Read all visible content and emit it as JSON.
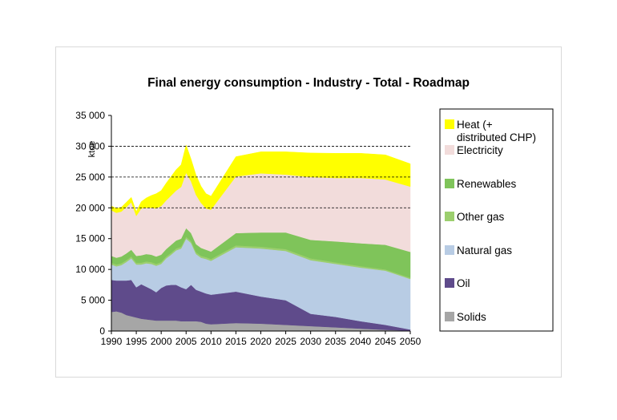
{
  "chart_data": {
    "type": "area",
    "title": "Final energy consumption - Industry - Total - Roadmap",
    "ylabel": "ktoe",
    "xlabel": "",
    "ylim": [
      0,
      35000
    ],
    "yticks": [
      0,
      5000,
      10000,
      15000,
      20000,
      25000,
      30000,
      35000
    ],
    "ytick_labels": [
      "0",
      "5 000",
      "10 000",
      "15 000",
      "20 000",
      "25 000",
      "30 000",
      "35 000"
    ],
    "xlim": [
      1990,
      2050
    ],
    "xticks": [
      1990,
      1995,
      2000,
      2005,
      2010,
      2015,
      2020,
      2025,
      2030,
      2035,
      2040,
      2045,
      2050
    ],
    "xtick_labels": [
      "1990",
      "1995",
      "2000",
      "2005",
      "2010",
      "2015",
      "2020",
      "2025",
      "2030",
      "2035",
      "2040",
      "2045",
      "2050"
    ],
    "grid": "dashed lines at 20 000, 25 000 and 30 000",
    "legend_position": "right",
    "stacked": true,
    "x": [
      1990,
      1991,
      1992,
      1993,
      1994,
      1995,
      1996,
      1997,
      1998,
      1999,
      2000,
      2001,
      2002,
      2003,
      2004,
      2005,
      2006,
      2007,
      2008,
      2009,
      2010,
      2015,
      2020,
      2025,
      2030,
      2035,
      2040,
      2045,
      2050
    ],
    "series": [
      {
        "name": "Solids",
        "color": "#a6a6a6",
        "values": [
          3100,
          3200,
          3000,
          2600,
          2400,
          2200,
          2000,
          1900,
          1800,
          1700,
          1700,
          1700,
          1700,
          1700,
          1600,
          1600,
          1600,
          1600,
          1500,
          1200,
          1100,
          1300,
          1200,
          1000,
          800,
          600,
          400,
          200,
          50
        ]
      },
      {
        "name": "Oil",
        "color": "#5f4b8b",
        "values": [
          5200,
          5000,
          5200,
          5600,
          5900,
          4900,
          5600,
          5300,
          5000,
          4600,
          5300,
          5700,
          5800,
          5800,
          5500,
          5200,
          5900,
          5100,
          4900,
          4900,
          4800,
          5100,
          4400,
          4000,
          2000,
          1700,
          1200,
          800,
          200
        ]
      },
      {
        "name": "Natural gas",
        "color": "#b8cce4",
        "values": [
          2500,
          2300,
          2500,
          3000,
          3500,
          3700,
          3200,
          3800,
          4100,
          4300,
          3900,
          4400,
          4900,
          5600,
          6300,
          8200,
          6800,
          5800,
          5500,
          5600,
          5500,
          7200,
          7800,
          8000,
          8700,
          8600,
          8700,
          8800,
          8200
        ]
      },
      {
        "name": "Other gas",
        "color": "#9ccf6e",
        "values": [
          300,
          300,
          300,
          300,
          300,
          300,
          300,
          300,
          300,
          300,
          300,
          300,
          300,
          300,
          300,
          300,
          300,
          300,
          300,
          300,
          300,
          300,
          300,
          300,
          300,
          250,
          250,
          200,
          200
        ]
      },
      {
        "name": "Renewables",
        "color": "#7fc45a",
        "values": [
          1100,
          1100,
          1100,
          1100,
          1100,
          1100,
          1200,
          1200,
          1200,
          1200,
          1200,
          1200,
          1300,
          1300,
          1300,
          1400,
          1300,
          1300,
          1300,
          1200,
          1200,
          2000,
          2300,
          2700,
          3000,
          3400,
          3700,
          4000,
          4200
        ]
      },
      {
        "name": "Electricity",
        "color": "#f2dcdb",
        "values": [
          7400,
          7300,
          7300,
          7500,
          7700,
          6500,
          7600,
          7500,
          7600,
          7800,
          7900,
          7900,
          8000,
          8100,
          8400,
          9000,
          8400,
          8000,
          7300,
          6700,
          6800,
          9200,
          9600,
          9400,
          10200,
          10300,
          10600,
          10600,
          10600
        ]
      },
      {
        "name": "Heat (+ distributed CHP)",
        "color": "#ffff00",
        "values": [
          700,
          700,
          700,
          800,
          800,
          700,
          1100,
          1600,
          2000,
          2400,
          2500,
          2800,
          3100,
          3400,
          3600,
          4500,
          3600,
          3200,
          2700,
          2400,
          2200,
          3200,
          3500,
          3700,
          3900,
          4000,
          4000,
          4000,
          3700
        ]
      }
    ],
    "legend_order": [
      "Heat (+ distributed CHP)",
      "Electricity",
      "Renewables",
      "Other gas",
      "Natural gas",
      "Oil",
      "Solids"
    ],
    "legend_lines": {
      "Heat (+ distributed CHP)": [
        "Heat (+",
        "distributed CHP)"
      ],
      "Electricity": [
        "Electricity"
      ],
      "Renewables": [
        "Renewables"
      ],
      "Other gas": [
        "Other gas"
      ],
      "Natural gas": [
        "Natural gas"
      ],
      "Oil": [
        "Oil"
      ],
      "Solids": [
        "Solids"
      ]
    }
  }
}
